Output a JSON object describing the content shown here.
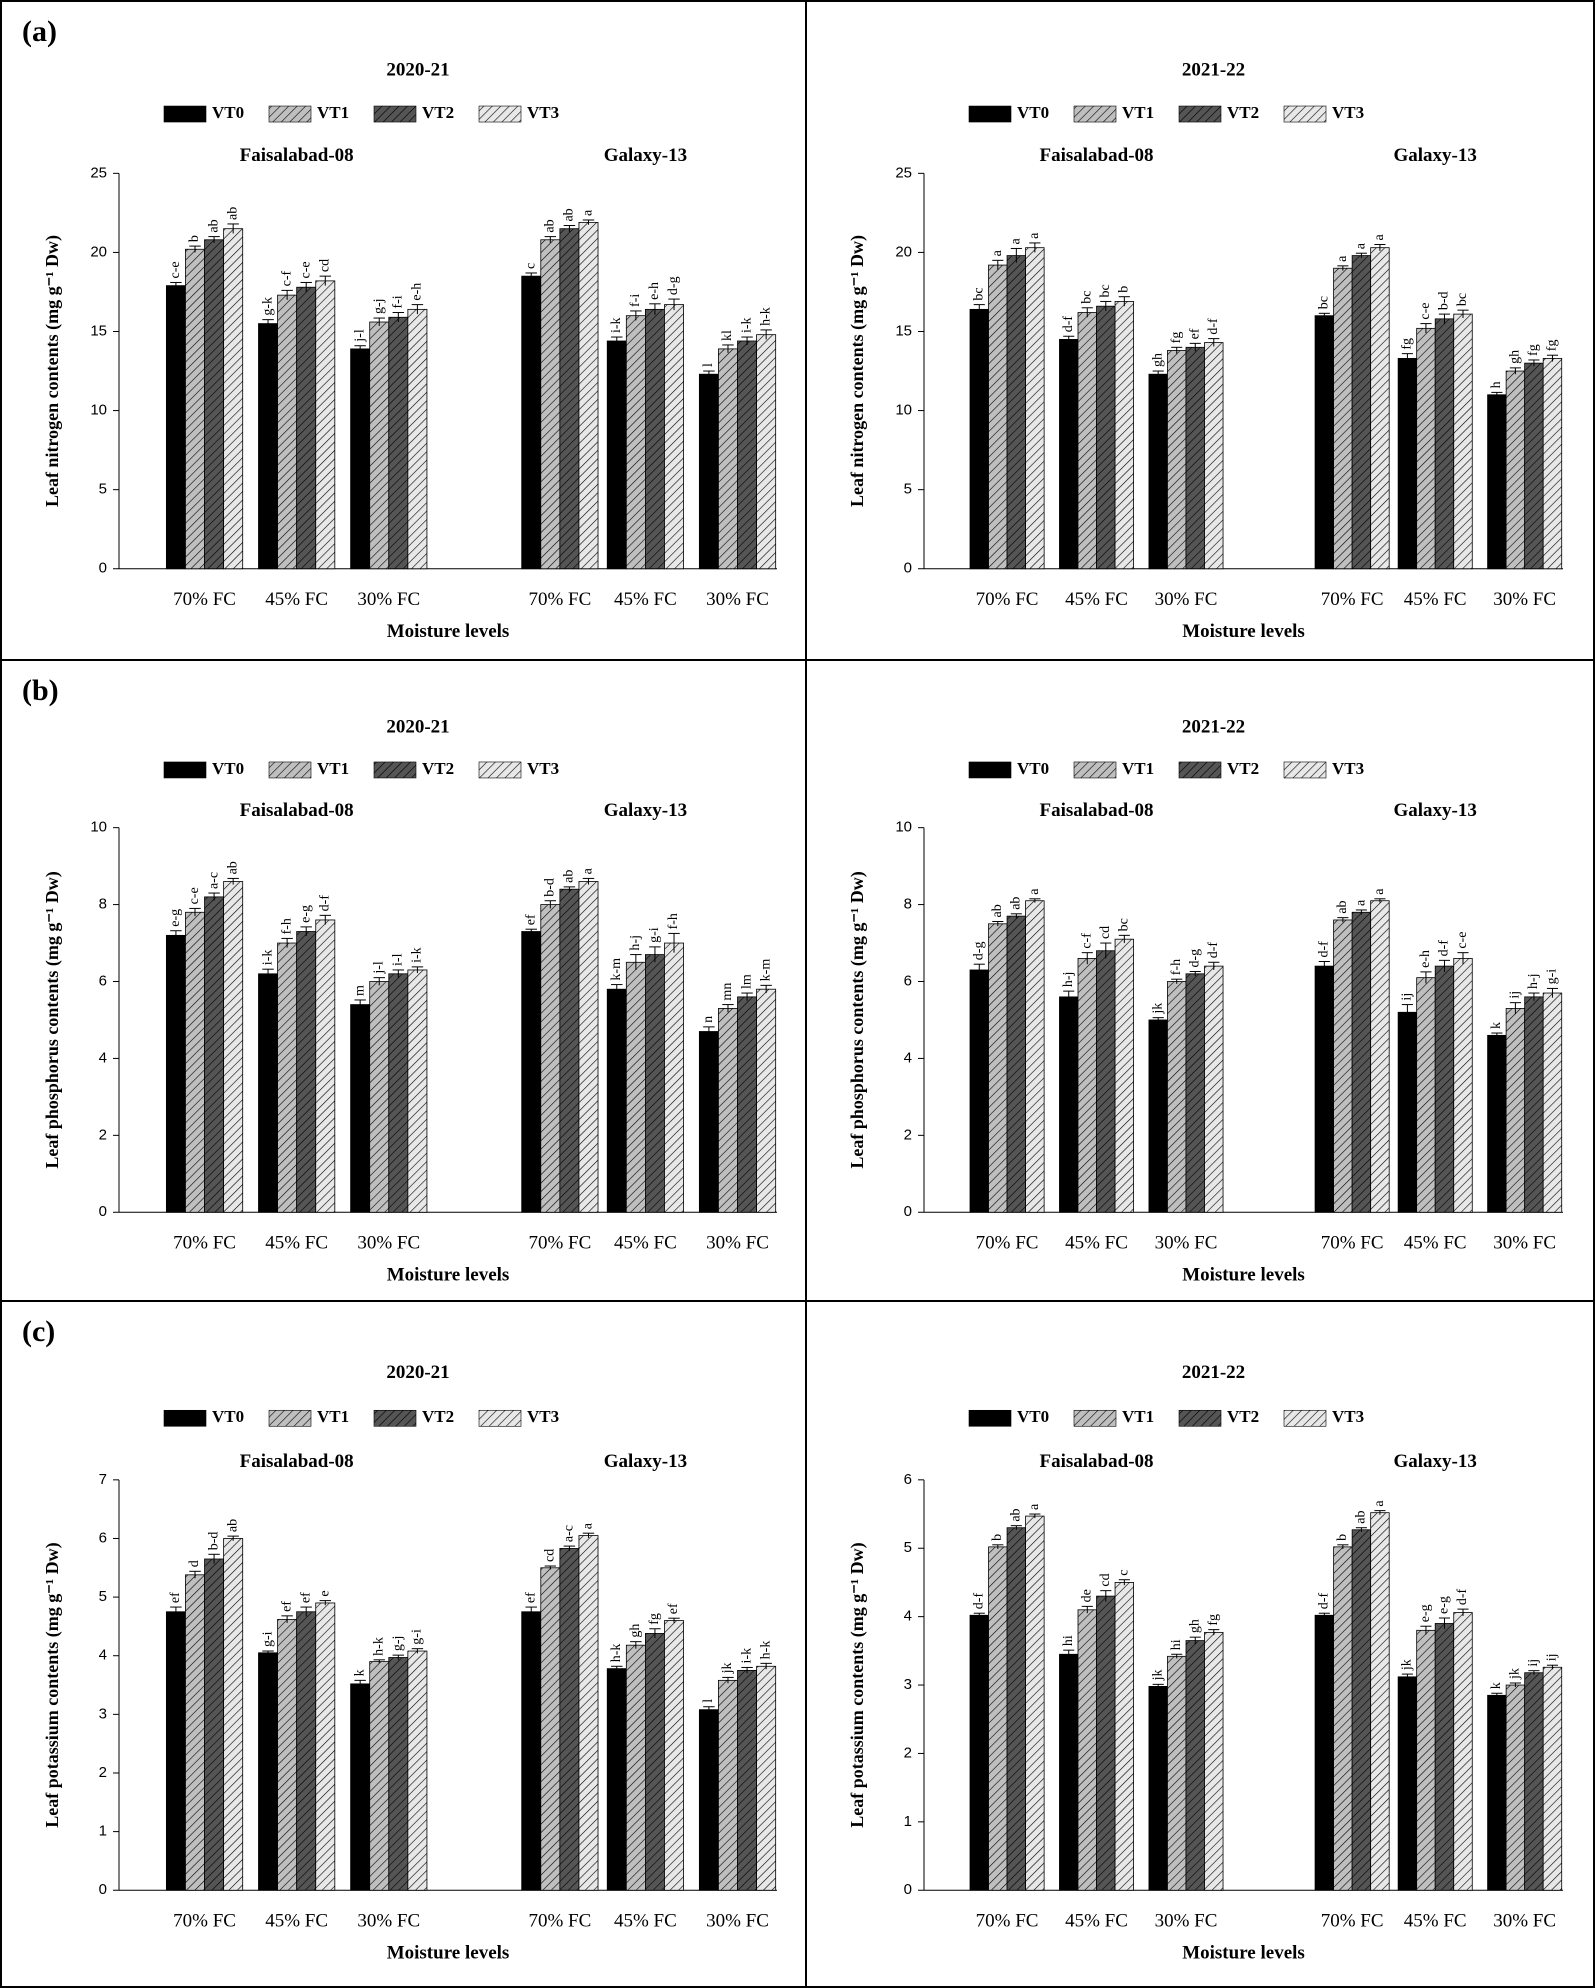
{
  "chart_data": [
    {
      "type": "bar",
      "panel_label": "(a)",
      "title": "2020-21",
      "ylabel": "Leaf nitrogen contents (mg g⁻¹ Dw)",
      "xlabel": "Moisture levels",
      "groups": [
        "Faisalabad-08",
        "Galaxy-13"
      ],
      "categories": [
        "70% FC",
        "45% FC",
        "30% FC",
        "70% FC",
        "45% FC",
        "30% FC"
      ],
      "ylim": [
        0,
        25
      ],
      "yticks": [
        0,
        5,
        10,
        15,
        20,
        25
      ],
      "series": [
        {
          "name": "VT0",
          "color": "#000000",
          "hatch": false,
          "values": [
            17.9,
            15.5,
            13.9,
            18.5,
            14.4,
            12.3
          ],
          "errors": [
            0.2,
            0.25,
            0.2,
            0.2,
            0.25,
            0.2
          ],
          "letters": [
            "c-e",
            "g-k",
            "j-l",
            "c",
            "i-k",
            "l"
          ]
        },
        {
          "name": "VT1",
          "color": "#bfbfbf",
          "hatch": true,
          "values": [
            20.2,
            17.3,
            15.6,
            20.8,
            16.0,
            13.9
          ],
          "errors": [
            0.2,
            0.3,
            0.25,
            0.2,
            0.3,
            0.25
          ],
          "letters": [
            "b",
            "c-f",
            "g-j",
            "ab",
            "f-i",
            "kl"
          ]
        },
        {
          "name": "VT2",
          "color": "#555555",
          "hatch": true,
          "values": [
            20.8,
            17.8,
            15.9,
            21.5,
            16.4,
            14.4
          ],
          "errors": [
            0.2,
            0.3,
            0.3,
            0.2,
            0.35,
            0.25
          ],
          "letters": [
            "ab",
            "c-e",
            "f-i",
            "ab",
            "e-h",
            "i-k"
          ]
        },
        {
          "name": "VT3",
          "color": "#e8e8e8",
          "hatch": true,
          "values": [
            21.5,
            18.2,
            16.4,
            21.9,
            16.7,
            14.8
          ],
          "errors": [
            0.3,
            0.3,
            0.3,
            0.15,
            0.35,
            0.3
          ],
          "letters": [
            "ab",
            "cd",
            "e-h",
            "a",
            "d-g",
            "h-k"
          ]
        }
      ]
    },
    {
      "type": "bar",
      "title": "2021-22",
      "ylabel": "Leaf nitrogen contents (mg g⁻¹ Dw)",
      "xlabel": "Moisture levels",
      "groups": [
        "Faisalabad-08",
        "Galaxy-13"
      ],
      "categories": [
        "70% FC",
        "45% FC",
        "30% FC",
        "70% FC",
        "45% FC",
        "30% FC"
      ],
      "ylim": [
        0,
        25
      ],
      "yticks": [
        0,
        5,
        10,
        15,
        20,
        25
      ],
      "series": [
        {
          "name": "VT0",
          "color": "#000000",
          "hatch": false,
          "values": [
            16.4,
            14.5,
            12.3,
            16.0,
            13.3,
            11.0
          ],
          "errors": [
            0.3,
            0.2,
            0.2,
            0.15,
            0.3,
            0.15
          ],
          "letters": [
            "bc",
            "d-f",
            "gh",
            "bc",
            "fg",
            "h"
          ]
        },
        {
          "name": "VT1",
          "color": "#bfbfbf",
          "hatch": true,
          "values": [
            19.2,
            16.2,
            13.8,
            19.0,
            15.2,
            12.5
          ],
          "errors": [
            0.3,
            0.3,
            0.2,
            0.15,
            0.3,
            0.2
          ],
          "letters": [
            "a",
            "bc",
            "fg",
            "a",
            "c-e",
            "gh"
          ]
        },
        {
          "name": "VT2",
          "color": "#555555",
          "hatch": true,
          "values": [
            19.8,
            16.6,
            14.0,
            19.8,
            15.8,
            13.0
          ],
          "errors": [
            0.45,
            0.3,
            0.25,
            0.15,
            0.3,
            0.2
          ],
          "letters": [
            "a",
            "bc",
            "ef",
            "a",
            "b-d",
            "fg"
          ]
        },
        {
          "name": "VT3",
          "color": "#e8e8e8",
          "hatch": true,
          "values": [
            20.3,
            16.9,
            14.3,
            20.3,
            16.1,
            13.3
          ],
          "errors": [
            0.3,
            0.3,
            0.25,
            0.2,
            0.25,
            0.2
          ],
          "letters": [
            "a",
            "b",
            "d-f",
            "a",
            "bc",
            "fg"
          ]
        }
      ]
    },
    {
      "type": "bar",
      "panel_label": "(b)",
      "title": "2020-21",
      "ylabel": "Leaf phosphorus contents (mg g⁻¹ Dw)",
      "xlabel": "Moisture levels",
      "groups": [
        "Faisalabad-08",
        "Galaxy-13"
      ],
      "categories": [
        "70% FC",
        "45% FC",
        "30% FC",
        "70% FC",
        "45% FC",
        "30% FC"
      ],
      "ylim": [
        0,
        10
      ],
      "yticks": [
        0,
        2,
        4,
        6,
        8,
        10
      ],
      "series": [
        {
          "name": "VT0",
          "color": "#000000",
          "hatch": false,
          "values": [
            7.2,
            6.2,
            5.4,
            7.3,
            5.8,
            4.7
          ],
          "errors": [
            0.12,
            0.12,
            0.12,
            0.06,
            0.12,
            0.12
          ],
          "letters": [
            "e-g",
            "i-k",
            "m",
            "ef",
            "k-m",
            "n"
          ]
        },
        {
          "name": "VT1",
          "color": "#bfbfbf",
          "hatch": true,
          "values": [
            7.8,
            7.0,
            6.0,
            8.0,
            6.5,
            5.3
          ],
          "errors": [
            0.1,
            0.12,
            0.1,
            0.1,
            0.2,
            0.1
          ],
          "letters": [
            "c-e",
            "f-h",
            "j-l",
            "b-d",
            "h-j",
            "mn"
          ]
        },
        {
          "name": "VT2",
          "color": "#555555",
          "hatch": true,
          "values": [
            8.2,
            7.3,
            6.2,
            8.4,
            6.7,
            5.6
          ],
          "errors": [
            0.1,
            0.12,
            0.1,
            0.06,
            0.2,
            0.1
          ],
          "letters": [
            "a-c",
            "e-g",
            "i-l",
            "ab",
            "g-i",
            "lm"
          ]
        },
        {
          "name": "VT3",
          "color": "#e8e8e8",
          "hatch": true,
          "values": [
            8.6,
            7.6,
            6.3,
            8.6,
            7.0,
            5.8
          ],
          "errors": [
            0.08,
            0.12,
            0.08,
            0.08,
            0.25,
            0.1
          ],
          "letters": [
            "ab",
            "d-f",
            "i-k",
            "a",
            "f-h",
            "k-m"
          ]
        }
      ]
    },
    {
      "type": "bar",
      "title": "2021-22",
      "ylabel": "Leaf phosphorus contents (mg g⁻¹ Dw)",
      "xlabel": "Moisture levels",
      "groups": [
        "Faisalabad-08",
        "Galaxy-13"
      ],
      "categories": [
        "70% FC",
        "45% FC",
        "30% FC",
        "70% FC",
        "45% FC",
        "30% FC"
      ],
      "ylim": [
        0,
        10
      ],
      "yticks": [
        0,
        2,
        4,
        6,
        8,
        10
      ],
      "series": [
        {
          "name": "VT0",
          "color": "#000000",
          "hatch": false,
          "values": [
            6.3,
            5.6,
            5.0,
            6.4,
            5.2,
            4.6
          ],
          "errors": [
            0.15,
            0.15,
            0.06,
            0.12,
            0.2,
            0.06
          ],
          "letters": [
            "d-g",
            "h-j",
            "jk",
            "d-f",
            "ij",
            "k"
          ]
        },
        {
          "name": "VT1",
          "color": "#bfbfbf",
          "hatch": true,
          "values": [
            7.5,
            6.6,
            6.0,
            7.6,
            6.1,
            5.3
          ],
          "errors": [
            0.06,
            0.15,
            0.06,
            0.06,
            0.15,
            0.15
          ],
          "letters": [
            "ab",
            "c-f",
            "f-h",
            "ab",
            "e-h",
            "ij"
          ]
        },
        {
          "name": "VT2",
          "color": "#555555",
          "hatch": true,
          "values": [
            7.7,
            6.8,
            6.2,
            7.8,
            6.4,
            5.6
          ],
          "errors": [
            0.06,
            0.2,
            0.06,
            0.06,
            0.15,
            0.1
          ],
          "letters": [
            "ab",
            "cd",
            "d-g",
            "a",
            "d-f",
            "h-j"
          ]
        },
        {
          "name": "VT3",
          "color": "#e8e8e8",
          "hatch": true,
          "values": [
            8.1,
            7.1,
            6.4,
            8.1,
            6.6,
            5.7
          ],
          "errors": [
            0.05,
            0.1,
            0.1,
            0.05,
            0.15,
            0.12
          ],
          "letters": [
            "a",
            "bc",
            "d-f",
            "a",
            "c-e",
            "g-i"
          ]
        }
      ]
    },
    {
      "type": "bar",
      "panel_label": "(c)",
      "title": "2020-21",
      "ylabel": "Leaf potassium contents (mg g⁻¹ Dw)",
      "xlabel": "Moisture levels",
      "groups": [
        "Faisalabad-08",
        "Galaxy-13"
      ],
      "categories": [
        "70% FC",
        "45% FC",
        "30% FC",
        "70% FC",
        "45% FC",
        "30% FC"
      ],
      "ylim": [
        0,
        7
      ],
      "yticks": [
        0,
        1,
        2,
        3,
        4,
        5,
        6,
        7
      ],
      "series": [
        {
          "name": "VT0",
          "color": "#000000",
          "hatch": false,
          "values": [
            4.75,
            4.05,
            3.52,
            4.75,
            3.78,
            3.08
          ],
          "errors": [
            0.08,
            0.03,
            0.06,
            0.08,
            0.04,
            0.05
          ],
          "letters": [
            "ef",
            "g-i",
            "k",
            "ef",
            "h-k",
            "l"
          ]
        },
        {
          "name": "VT1",
          "color": "#bfbfbf",
          "hatch": true,
          "values": [
            5.38,
            4.62,
            3.9,
            5.5,
            4.18,
            3.58
          ],
          "errors": [
            0.06,
            0.06,
            0.03,
            0.03,
            0.06,
            0.05
          ],
          "letters": [
            "d",
            "ef",
            "h-k",
            "cd",
            "gh",
            "jk"
          ]
        },
        {
          "name": "VT2",
          "color": "#555555",
          "hatch": true,
          "values": [
            5.65,
            4.75,
            3.97,
            5.83,
            4.38,
            3.75
          ],
          "errors": [
            0.08,
            0.08,
            0.04,
            0.04,
            0.08,
            0.05
          ],
          "letters": [
            "b-d",
            "ef",
            "g-j",
            "a-c",
            "fg",
            "i-k"
          ]
        },
        {
          "name": "VT3",
          "color": "#e8e8e8",
          "hatch": true,
          "values": [
            6.0,
            4.9,
            4.08,
            6.05,
            4.6,
            3.82
          ],
          "errors": [
            0.04,
            0.04,
            0.04,
            0.04,
            0.04,
            0.05
          ],
          "letters": [
            "ab",
            "e",
            "g-i",
            "a",
            "ef",
            "h-k"
          ]
        }
      ]
    },
    {
      "type": "bar",
      "title": "2021-22",
      "ylabel": "Leaf potassium contents (mg g⁻¹ Dw)",
      "xlabel": "Moisture levels",
      "groups": [
        "Faisalabad-08",
        "Galaxy-13"
      ],
      "categories": [
        "70% FC",
        "45% FC",
        "30% FC",
        "70% FC",
        "45% FC",
        "30% FC"
      ],
      "ylim": [
        0,
        6
      ],
      "yticks": [
        0,
        1,
        2,
        3,
        4,
        5,
        6
      ],
      "series": [
        {
          "name": "VT0",
          "color": "#000000",
          "hatch": false,
          "values": [
            4.02,
            3.45,
            2.98,
            4.02,
            3.12,
            2.85
          ],
          "errors": [
            0.03,
            0.06,
            0.03,
            0.03,
            0.04,
            0.03
          ],
          "letters": [
            "d-f",
            "hi",
            "jk",
            "d-f",
            "jk",
            "k"
          ]
        },
        {
          "name": "VT1",
          "color": "#bfbfbf",
          "hatch": true,
          "values": [
            5.02,
            4.1,
            3.42,
            5.02,
            3.8,
            3.0
          ],
          "errors": [
            0.03,
            0.05,
            0.03,
            0.03,
            0.06,
            0.03
          ],
          "letters": [
            "b",
            "de",
            "hi",
            "b",
            "e-g",
            "jk"
          ]
        },
        {
          "name": "VT2",
          "color": "#555555",
          "hatch": true,
          "values": [
            5.3,
            4.3,
            3.65,
            5.27,
            3.9,
            3.18
          ],
          "errors": [
            0.03,
            0.08,
            0.05,
            0.03,
            0.08,
            0.03
          ],
          "letters": [
            "ab",
            "cd",
            "gh",
            "ab",
            "e-g",
            "ij"
          ]
        },
        {
          "name": "VT3",
          "color": "#e8e8e8",
          "hatch": true,
          "values": [
            5.47,
            4.5,
            3.77,
            5.52,
            4.06,
            3.26
          ],
          "errors": [
            0.03,
            0.04,
            0.04,
            0.03,
            0.05,
            0.03
          ],
          "letters": [
            "a",
            "c",
            "fg",
            "a",
            "d-f",
            "ij"
          ]
        }
      ]
    }
  ]
}
